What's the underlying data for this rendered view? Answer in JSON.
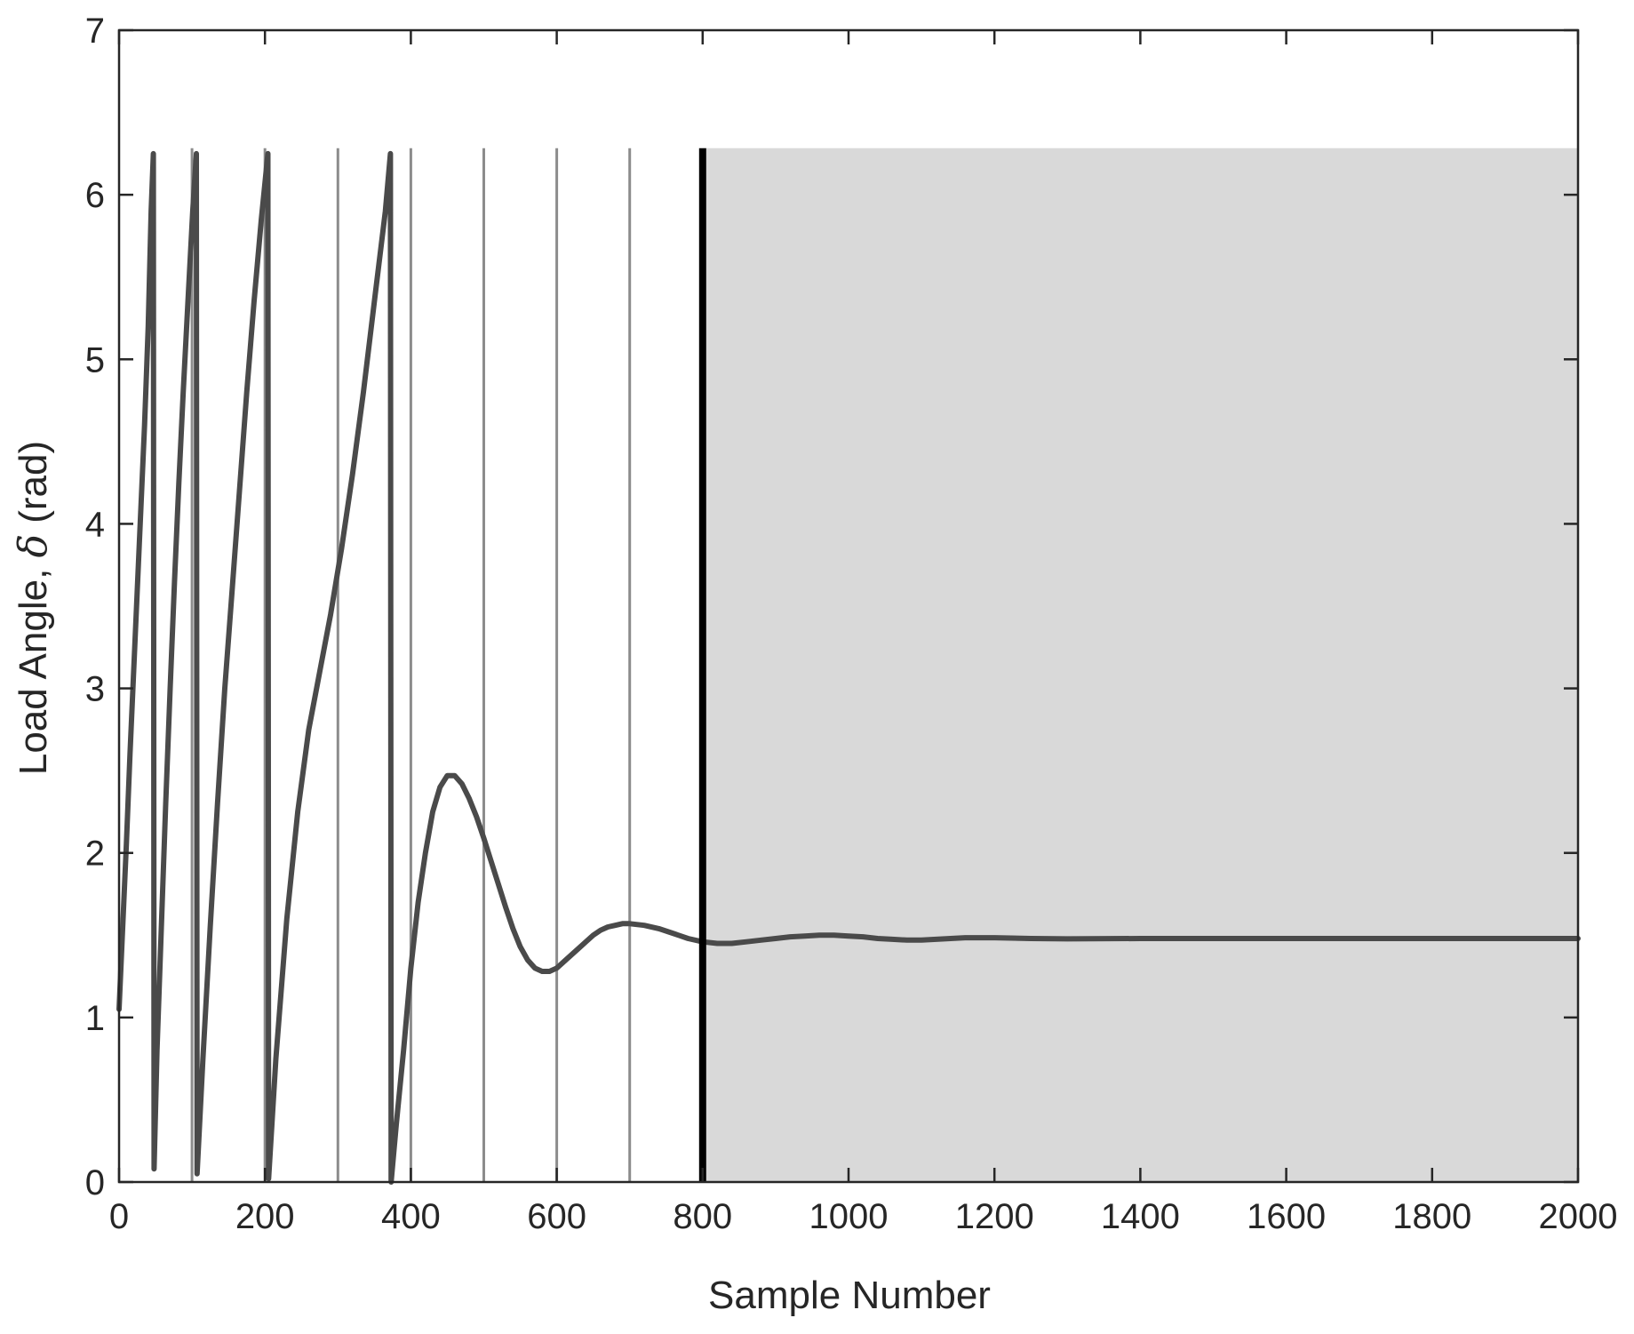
{
  "chart_data": {
    "type": "line",
    "title": "",
    "xlabel": "Sample Number",
    "ylabel": {
      "prefix": "Load Angle, ",
      "symbol": "δ",
      "suffix": " (rad)"
    },
    "xlim": [
      0,
      2000
    ],
    "ylim": [
      0,
      7
    ],
    "xticks": [
      0,
      200,
      400,
      600,
      800,
      1000,
      1200,
      1400,
      1600,
      1800,
      2000
    ],
    "yticks": [
      0,
      1,
      2,
      3,
      4,
      5,
      6,
      7
    ],
    "grid": false,
    "legend": "none",
    "wrap_max": 6.2832,
    "marker_lines": [
      100,
      200,
      300,
      400,
      500,
      600,
      700
    ],
    "boundary_line": 800,
    "shaded_region": {
      "x": [
        800,
        2000
      ],
      "y": [
        0,
        6.2832
      ]
    },
    "series": [
      {
        "points": [
          [
            0,
            1.05
          ],
          [
            5,
            1.55
          ],
          [
            10,
            2.05
          ],
          [
            15,
            2.6
          ],
          [
            20,
            3.1
          ],
          [
            25,
            3.6
          ],
          [
            30,
            4.1
          ],
          [
            35,
            4.6
          ],
          [
            40,
            5.2
          ],
          [
            44,
            5.9
          ],
          [
            47,
            6.25
          ],
          [
            48,
            0.08
          ],
          [
            52,
            0.8
          ],
          [
            58,
            1.55
          ],
          [
            64,
            2.3
          ],
          [
            70,
            3.0
          ],
          [
            76,
            3.65
          ],
          [
            82,
            4.25
          ],
          [
            88,
            4.8
          ],
          [
            95,
            5.4
          ],
          [
            101,
            5.9
          ],
          [
            106,
            6.25
          ],
          [
            107,
            0.05
          ],
          [
            115,
            0.75
          ],
          [
            125,
            1.55
          ],
          [
            135,
            2.3
          ],
          [
            145,
            3.0
          ],
          [
            155,
            3.6
          ],
          [
            165,
            4.2
          ],
          [
            175,
            4.8
          ],
          [
            185,
            5.35
          ],
          [
            195,
            5.85
          ],
          [
            204,
            6.25
          ],
          [
            205,
            0.02
          ],
          [
            215,
            0.75
          ],
          [
            230,
            1.6
          ],
          [
            245,
            2.25
          ],
          [
            260,
            2.75
          ],
          [
            275,
            3.1
          ],
          [
            290,
            3.45
          ],
          [
            305,
            3.85
          ],
          [
            320,
            4.3
          ],
          [
            335,
            4.8
          ],
          [
            350,
            5.35
          ],
          [
            365,
            5.9
          ],
          [
            372,
            6.25
          ],
          [
            373,
            0.0
          ],
          [
            380,
            0.35
          ],
          [
            390,
            0.8
          ],
          [
            400,
            1.3
          ],
          [
            410,
            1.7
          ],
          [
            420,
            2.0
          ],
          [
            430,
            2.25
          ],
          [
            440,
            2.4
          ],
          [
            450,
            2.47
          ],
          [
            460,
            2.47
          ],
          [
            470,
            2.42
          ],
          [
            480,
            2.33
          ],
          [
            490,
            2.22
          ],
          [
            500,
            2.09
          ],
          [
            510,
            1.95
          ],
          [
            520,
            1.81
          ],
          [
            530,
            1.67
          ],
          [
            540,
            1.54
          ],
          [
            550,
            1.43
          ],
          [
            560,
            1.35
          ],
          [
            570,
            1.3
          ],
          [
            580,
            1.28
          ],
          [
            590,
            1.28
          ],
          [
            600,
            1.3
          ],
          [
            610,
            1.34
          ],
          [
            620,
            1.38
          ],
          [
            630,
            1.42
          ],
          [
            640,
            1.46
          ],
          [
            650,
            1.5
          ],
          [
            660,
            1.53
          ],
          [
            670,
            1.55
          ],
          [
            680,
            1.56
          ],
          [
            690,
            1.57
          ],
          [
            700,
            1.57
          ],
          [
            720,
            1.56
          ],
          [
            740,
            1.54
          ],
          [
            760,
            1.51
          ],
          [
            780,
            1.48
          ],
          [
            800,
            1.46
          ],
          [
            820,
            1.45
          ],
          [
            840,
            1.45
          ],
          [
            860,
            1.46
          ],
          [
            880,
            1.47
          ],
          [
            900,
            1.48
          ],
          [
            920,
            1.49
          ],
          [
            940,
            1.495
          ],
          [
            960,
            1.5
          ],
          [
            980,
            1.5
          ],
          [
            1000,
            1.495
          ],
          [
            1020,
            1.49
          ],
          [
            1040,
            1.48
          ],
          [
            1060,
            1.475
          ],
          [
            1080,
            1.47
          ],
          [
            1100,
            1.47
          ],
          [
            1120,
            1.475
          ],
          [
            1140,
            1.48
          ],
          [
            1160,
            1.485
          ],
          [
            1180,
            1.485
          ],
          [
            1200,
            1.485
          ],
          [
            1250,
            1.48
          ],
          [
            1300,
            1.478
          ],
          [
            1400,
            1.48
          ],
          [
            1500,
            1.48
          ],
          [
            1600,
            1.48
          ],
          [
            1800,
            1.48
          ],
          [
            2000,
            1.48
          ]
        ]
      }
    ]
  }
}
